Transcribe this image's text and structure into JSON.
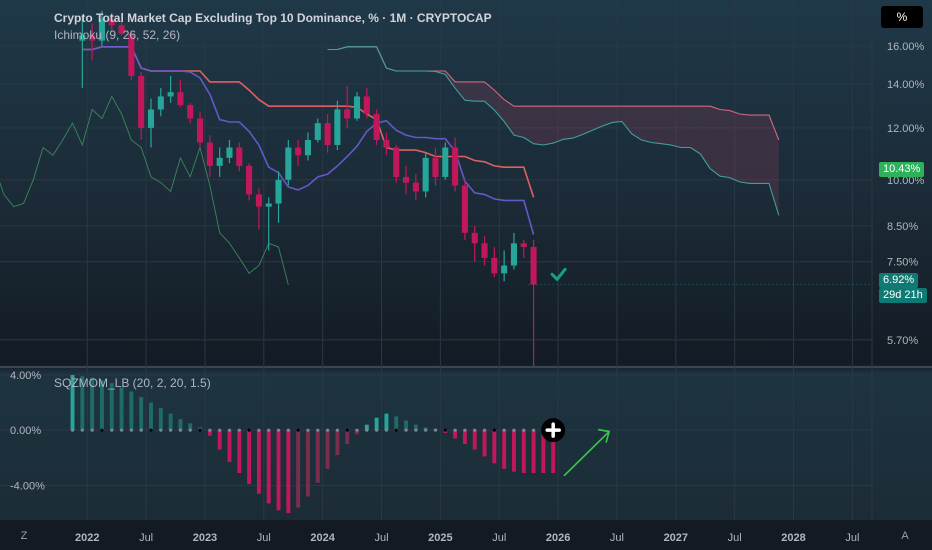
{
  "header": {
    "title": "Crypto Total Market Cap Excluding Top 10 Dominance, % · 1M · CRYPTOCAP",
    "indicator": "Ichimoku (9, 26, 52, 26)",
    "scale_button": "%"
  },
  "footer": {
    "left_button": "Z",
    "right_button": "A"
  },
  "price_badges": {
    "current_value": "10.43%",
    "current_color": "#2db15a",
    "bar_value": "6.92%",
    "countdown": "29d 21h",
    "bar_color": "#0f7a73"
  },
  "chart_data": [
    {
      "type": "candlestick",
      "title": "Crypto Total Market Cap Excluding Top 10 Dominance, % · 1M · CRYPTOCAP",
      "scale": "log",
      "y_ticks": [
        "16.00%",
        "14.00%",
        "12.00%",
        "10.00%",
        "8.50%",
        "7.50%",
        "5.70%"
      ],
      "y_tick_values": [
        16,
        14,
        12,
        10,
        8.5,
        7.5,
        5.7
      ],
      "ylim": [
        5.2,
        18.8
      ],
      "x_ticks": [
        "2022",
        "Jul",
        "2023",
        "Jul",
        "2024",
        "Jul",
        "2025",
        "Jul",
        "2026",
        "Jul",
        "2027",
        "Jul",
        "2028",
        "Jul"
      ],
      "xlim": [
        "2021-09",
        "2028-09"
      ],
      "candles": {
        "start": "2021-12",
        "ohlc": [
          [
            16.3,
            17.8,
            13.8,
            16.6
          ],
          [
            16.6,
            17.3,
            15.2,
            16.3
          ],
          [
            16.3,
            18.1,
            16.0,
            17.6
          ],
          [
            17.6,
            18.0,
            16.8,
            17.2
          ],
          [
            17.2,
            17.4,
            16.6,
            16.7
          ],
          [
            16.7,
            16.9,
            14.2,
            14.4
          ],
          [
            14.4,
            14.6,
            11.5,
            12.0
          ],
          [
            12.0,
            13.3,
            11.2,
            12.8
          ],
          [
            12.8,
            13.8,
            12.5,
            13.4
          ],
          [
            13.4,
            14.4,
            13.1,
            13.6
          ],
          [
            13.6,
            14.2,
            12.9,
            13.0
          ],
          [
            13.0,
            13.1,
            12.2,
            12.4
          ],
          [
            12.4,
            12.7,
            11.2,
            11.4
          ],
          [
            11.4,
            11.7,
            10.1,
            10.5
          ],
          [
            10.5,
            11.2,
            10.1,
            10.8
          ],
          [
            10.8,
            11.5,
            10.6,
            11.2
          ],
          [
            11.2,
            11.4,
            10.3,
            10.5
          ],
          [
            10.5,
            10.6,
            9.3,
            9.5
          ],
          [
            9.5,
            9.7,
            8.4,
            9.1
          ],
          [
            9.1,
            9.4,
            7.8,
            9.2
          ],
          [
            9.2,
            10.3,
            8.6,
            10.0
          ],
          [
            10.0,
            11.5,
            9.8,
            11.2
          ],
          [
            11.2,
            11.5,
            10.5,
            10.9
          ],
          [
            10.9,
            11.8,
            10.7,
            11.5
          ],
          [
            11.5,
            12.4,
            11.4,
            12.2
          ],
          [
            12.2,
            12.6,
            11.0,
            11.3
          ],
          [
            11.3,
            13.2,
            11.1,
            12.8
          ],
          [
            12.8,
            13.9,
            12.0,
            12.4
          ],
          [
            12.4,
            13.6,
            12.3,
            13.4
          ],
          [
            13.4,
            13.8,
            12.4,
            12.6
          ],
          [
            12.6,
            12.8,
            11.3,
            11.5
          ],
          [
            11.5,
            11.8,
            10.9,
            11.2
          ],
          [
            11.2,
            11.3,
            9.9,
            10.1
          ],
          [
            10.1,
            10.5,
            9.5,
            9.9
          ],
          [
            9.9,
            10.2,
            9.3,
            9.6
          ],
          [
            9.6,
            11.0,
            9.4,
            10.8
          ],
          [
            10.8,
            11.2,
            9.8,
            10.1
          ],
          [
            10.1,
            11.4,
            10.0,
            11.2
          ],
          [
            11.2,
            11.6,
            9.6,
            9.8
          ],
          [
            9.8,
            10.0,
            8.1,
            8.3
          ],
          [
            8.3,
            8.5,
            7.5,
            8.0
          ],
          [
            8.0,
            8.2,
            7.4,
            7.6
          ],
          [
            7.6,
            7.9,
            7.1,
            7.2
          ],
          [
            7.2,
            7.8,
            7.0,
            7.4
          ],
          [
            7.4,
            8.3,
            7.3,
            8.0
          ],
          [
            8.0,
            8.1,
            7.6,
            7.9
          ],
          [
            7.9,
            8.1,
            4.9,
            6.92
          ]
        ]
      },
      "ichimoku": {
        "params": [
          9,
          26,
          52,
          26
        ],
        "tenkan_color": "#6a5acd",
        "kijun_color": "#e86464",
        "span_a_color": "#3fa6a0",
        "span_b_color": "#d96a86",
        "cloud_bull_color": "#2e7f7a",
        "cloud_bear_color": "#8a3d56"
      },
      "annotations": [
        {
          "type": "checkmark",
          "color": "#16a085"
        }
      ],
      "colors": {
        "up": "#26a69a",
        "down": "#c2185b"
      }
    },
    {
      "type": "bar",
      "title": "SQZMOM_LB (20, 2, 20, 1.5)",
      "y_ticks": [
        "4.00%",
        "0.00%",
        "-4.00%"
      ],
      "y_tick_values": [
        4,
        0,
        -4
      ],
      "ylim": [
        -6.5,
        4.5
      ],
      "start": "2021-11",
      "values": [
        4.0,
        3.9,
        3.8,
        3.6,
        3.4,
        3.1,
        2.8,
        2.4,
        2.0,
        1.6,
        1.2,
        0.8,
        0.5,
        0.2,
        -0.4,
        -1.4,
        -2.3,
        -3.1,
        -3.9,
        -4.6,
        -5.3,
        -5.8,
        -6.0,
        -5.6,
        -4.8,
        -3.8,
        -2.8,
        -1.8,
        -1.0,
        -0.3,
        0.4,
        0.9,
        1.2,
        1.0,
        0.7,
        0.4,
        0.2,
        0.1,
        -0.2,
        -0.6,
        -1.0,
        -1.4,
        -1.9,
        -2.4,
        -2.8,
        -3.0,
        -3.1,
        -3.1,
        -3.1,
        -3.1
      ],
      "squeeze_dots": "gray/black dots on zero line",
      "annotations": [
        {
          "type": "plus-circle"
        },
        {
          "type": "arrow-up-right",
          "color": "#3cc84a"
        }
      ],
      "colors": {
        "up_strong": "#26a69a",
        "up_weak": "#1e6c66",
        "down_strong": "#c2185b",
        "down_weak": "#7a2d4d"
      }
    }
  ]
}
